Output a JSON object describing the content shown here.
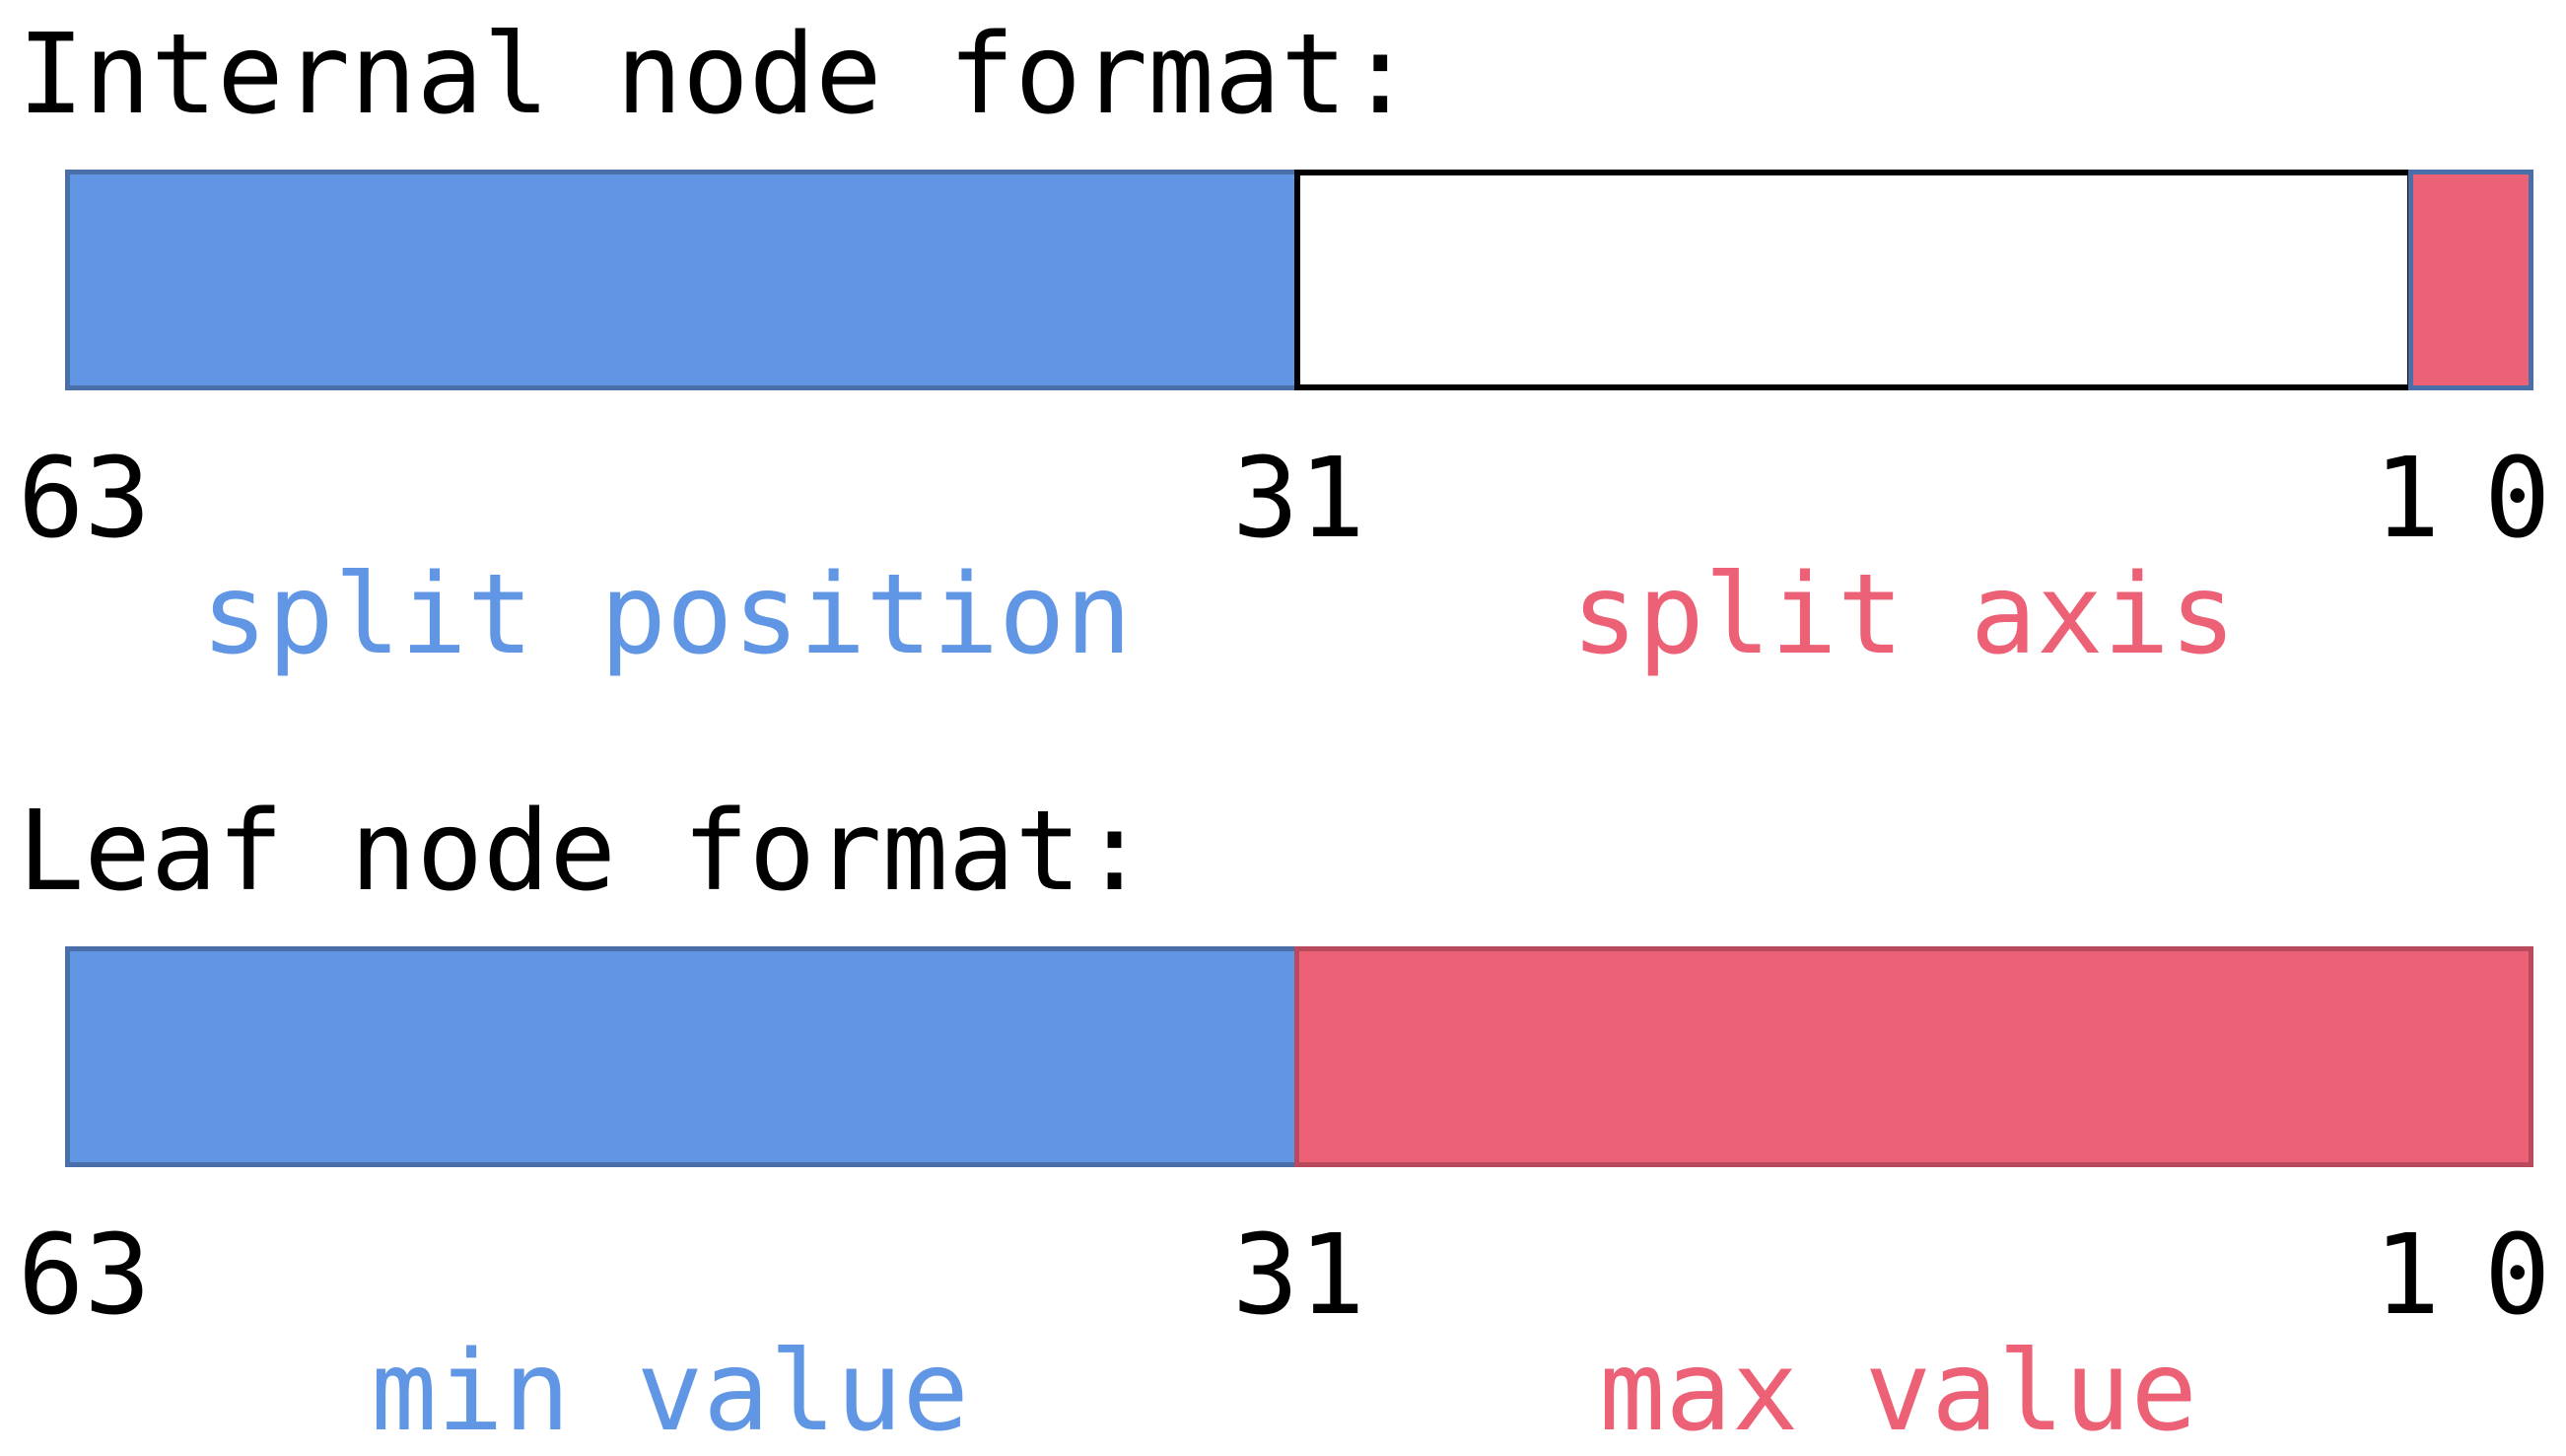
{
  "colors": {
    "blue": "#6096E4",
    "blue_border": "#4A6FA8",
    "red": "#EC6175",
    "red_border": "#B94A5E",
    "black": "#000000",
    "white": "#FFFFFF",
    "blue_text": "#6096E4",
    "red_text": "#EC6175"
  },
  "internal": {
    "heading": "Internal node format:",
    "bits": {
      "b63": "63",
      "b31": "31",
      "b1": "1",
      "b0": "0"
    },
    "labels": {
      "left": "split position",
      "right": "split axis"
    }
  },
  "leaf": {
    "heading": "Leaf node format:",
    "bits": {
      "b63": "63",
      "b31": "31",
      "b1": "1",
      "b0": "0"
    },
    "labels": {
      "left": "min value",
      "right": "max value"
    }
  }
}
